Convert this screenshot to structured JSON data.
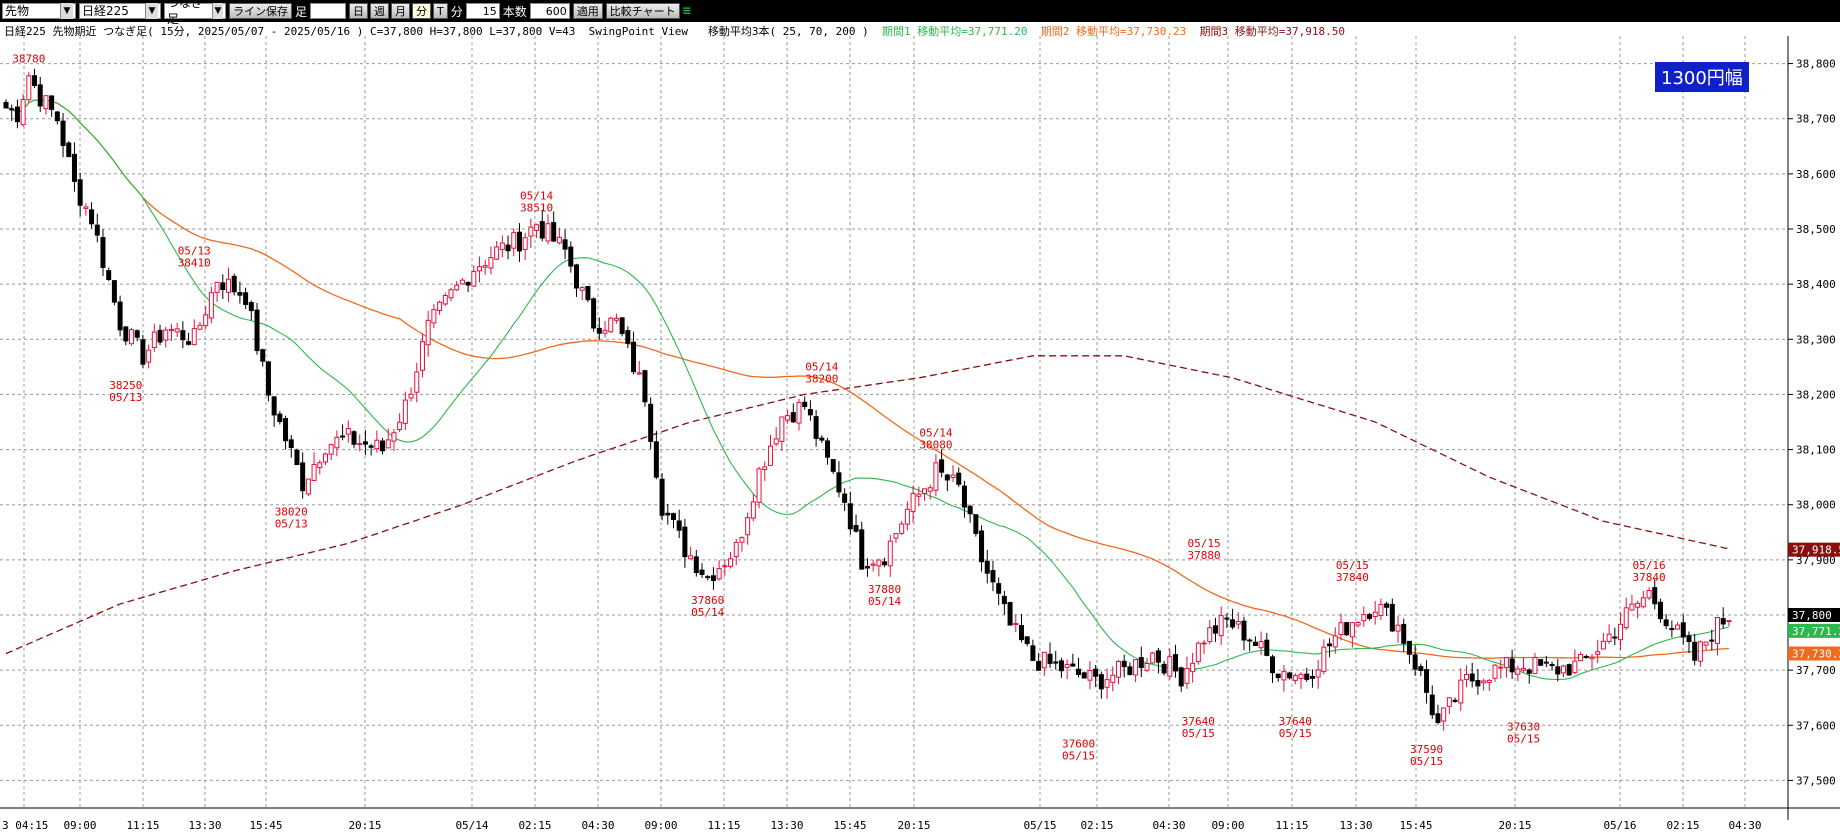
{
  "toolbar": {
    "market_select": "先物",
    "symbol_select": "日経225",
    "chart_type_select": "つなぎ足",
    "save_line_button": "ライン保存",
    "bar_label": "足",
    "period_buttons": [
      "日",
      "週",
      "月",
      "分",
      "T"
    ],
    "active_period": "分",
    "minute_label": "分",
    "minute_value": "15",
    "count_label": "本数",
    "count_value": "600",
    "apply_button": "適用",
    "compare_button": "比較チャート"
  },
  "info": {
    "title": "日経225 先物期近 つなぎ足( 15分, 2025/05/07 - 2025/05/16 )",
    "ohlc": "C=37,800 H=37,800 L=37,800 V=43",
    "swing": "SwingPoint View",
    "ma_label": "移動平均3本( 25, 70, 200 )",
    "ma1": "期間1 移動平均=37,771.20",
    "ma2": "期間2 移動平均=37,730.23",
    "ma3": "期間3 移動平均=37,918.50"
  },
  "badge": "1300円幅",
  "colors": {
    "up": "#e8103a",
    "down": "#000000",
    "ma1": "#2db84d",
    "ma2": "#f06a1e",
    "ma3": "#8a1010",
    "swing": "#e00000",
    "grid": "#999999"
  },
  "chart_data": {
    "type": "candlestick",
    "title": "日経225 先物期近 つなぎ足( 15分, 2025/05/07 - 2025/05/16 )",
    "ylim": [
      37450,
      38850
    ],
    "y_ticks": [
      "38,800",
      "38,700",
      "38,600",
      "38,500",
      "38,400",
      "38,300",
      "38,200",
      "38,100",
      "38,000",
      "37,900",
      "37,800",
      "37,700",
      "37,600",
      "37,500"
    ],
    "x_tick_labels": [
      "3 04:15",
      "09:00",
      "11:15",
      "13:30",
      "15:45",
      "20:15",
      "05/14",
      "02:15",
      "04:30",
      "09:00",
      "11:15",
      "13:30",
      "15:45",
      "20:15",
      "05/15",
      "02:15",
      "04:30",
      "09:00",
      "11:15",
      "13:30",
      "15:45",
      "20:15",
      "05/16",
      "02:15",
      "04:30"
    ],
    "anchors": [
      [
        0,
        38720
      ],
      [
        2,
        38710
      ],
      [
        4,
        38780
      ],
      [
        6,
        38740
      ],
      [
        9,
        38700
      ],
      [
        12,
        38580
      ],
      [
        15,
        38520
      ],
      [
        20,
        38330
      ],
      [
        24,
        38270
      ],
      [
        28,
        38320
      ],
      [
        33,
        38300
      ],
      [
        37,
        38410
      ],
      [
        42,
        38380
      ],
      [
        46,
        38200
      ],
      [
        52,
        38040
      ],
      [
        56,
        38110
      ],
      [
        60,
        38120
      ],
      [
        66,
        38100
      ],
      [
        70,
        38180
      ],
      [
        74,
        38320
      ],
      [
        78,
        38380
      ],
      [
        82,
        38430
      ],
      [
        86,
        38460
      ],
      [
        90,
        38480
      ],
      [
        93,
        38510
      ],
      [
        98,
        38460
      ],
      [
        103,
        38330
      ],
      [
        107,
        38330
      ],
      [
        112,
        38200
      ],
      [
        115,
        38000
      ],
      [
        119,
        37920
      ],
      [
        123,
        37870
      ],
      [
        128,
        37920
      ],
      [
        132,
        38060
      ],
      [
        136,
        38160
      ],
      [
        140,
        38180
      ],
      [
        143,
        38100
      ],
      [
        147,
        38010
      ],
      [
        150,
        37900
      ],
      [
        154,
        37910
      ],
      [
        158,
        37990
      ],
      [
        163,
        38060
      ],
      [
        167,
        38030
      ],
      [
        171,
        37900
      ],
      [
        176,
        37780
      ],
      [
        180,
        37720
      ],
      [
        186,
        37700
      ],
      [
        191,
        37680
      ],
      [
        196,
        37700
      ],
      [
        201,
        37730
      ],
      [
        206,
        37690
      ],
      [
        210,
        37760
      ],
      [
        214,
        37790
      ],
      [
        218,
        37760
      ],
      [
        223,
        37700
      ],
      [
        228,
        37690
      ],
      [
        233,
        37760
      ],
      [
        236,
        37790
      ],
      [
        240,
        37820
      ],
      [
        244,
        37780
      ],
      [
        248,
        37690
      ],
      [
        251,
        37600
      ],
      [
        256,
        37680
      ],
      [
        261,
        37700
      ],
      [
        266,
        37710
      ],
      [
        271,
        37700
      ],
      [
        276,
        37710
      ],
      [
        280,
        37750
      ],
      [
        284,
        37800
      ],
      [
        288,
        37840
      ],
      [
        292,
        37780
      ],
      [
        296,
        37720
      ],
      [
        299,
        37770
      ],
      [
        302,
        37800
      ]
    ],
    "swing_points": [
      {
        "idx": 4,
        "price": 38780,
        "date": "",
        "top": true
      },
      {
        "idx": 33,
        "price": 38410,
        "date": "05/13",
        "top": true
      },
      {
        "idx": 21,
        "price": 38250,
        "date": "05/13",
        "top": false
      },
      {
        "idx": 50,
        "price": 38020,
        "date": "05/13",
        "top": false
      },
      {
        "idx": 93,
        "price": 38510,
        "date": "05/14",
        "top": true
      },
      {
        "idx": 123,
        "price": 37860,
        "date": "05/14",
        "top": false
      },
      {
        "idx": 143,
        "price": 38200,
        "date": "05/14",
        "top": true
      },
      {
        "idx": 154,
        "price": 37880,
        "date": "05/14",
        "top": false
      },
      {
        "idx": 163,
        "price": 38080,
        "date": "05/14",
        "top": true
      },
      {
        "idx": 188,
        "price": 37600,
        "date": "05/15",
        "top": false
      },
      {
        "idx": 209,
        "price": 37640,
        "date": "05/15",
        "top": false
      },
      {
        "idx": 210,
        "price": 37880,
        "date": "05/15",
        "top": true
      },
      {
        "idx": 226,
        "price": 37640,
        "date": "05/15",
        "top": false
      },
      {
        "idx": 236,
        "price": 37840,
        "date": "05/15",
        "top": true
      },
      {
        "idx": 249,
        "price": 37590,
        "date": "05/15",
        "top": false
      },
      {
        "idx": 266,
        "price": 37630,
        "date": "05/15",
        "top": false
      },
      {
        "idx": 288,
        "price": 37840,
        "date": "05/16",
        "top": true
      }
    ],
    "ma_last": {
      "ma1": "37,771.2",
      "ma2": "37,730.2",
      "ma3": "37,918.5"
    },
    "last_price": "37,800",
    "grid": true
  }
}
